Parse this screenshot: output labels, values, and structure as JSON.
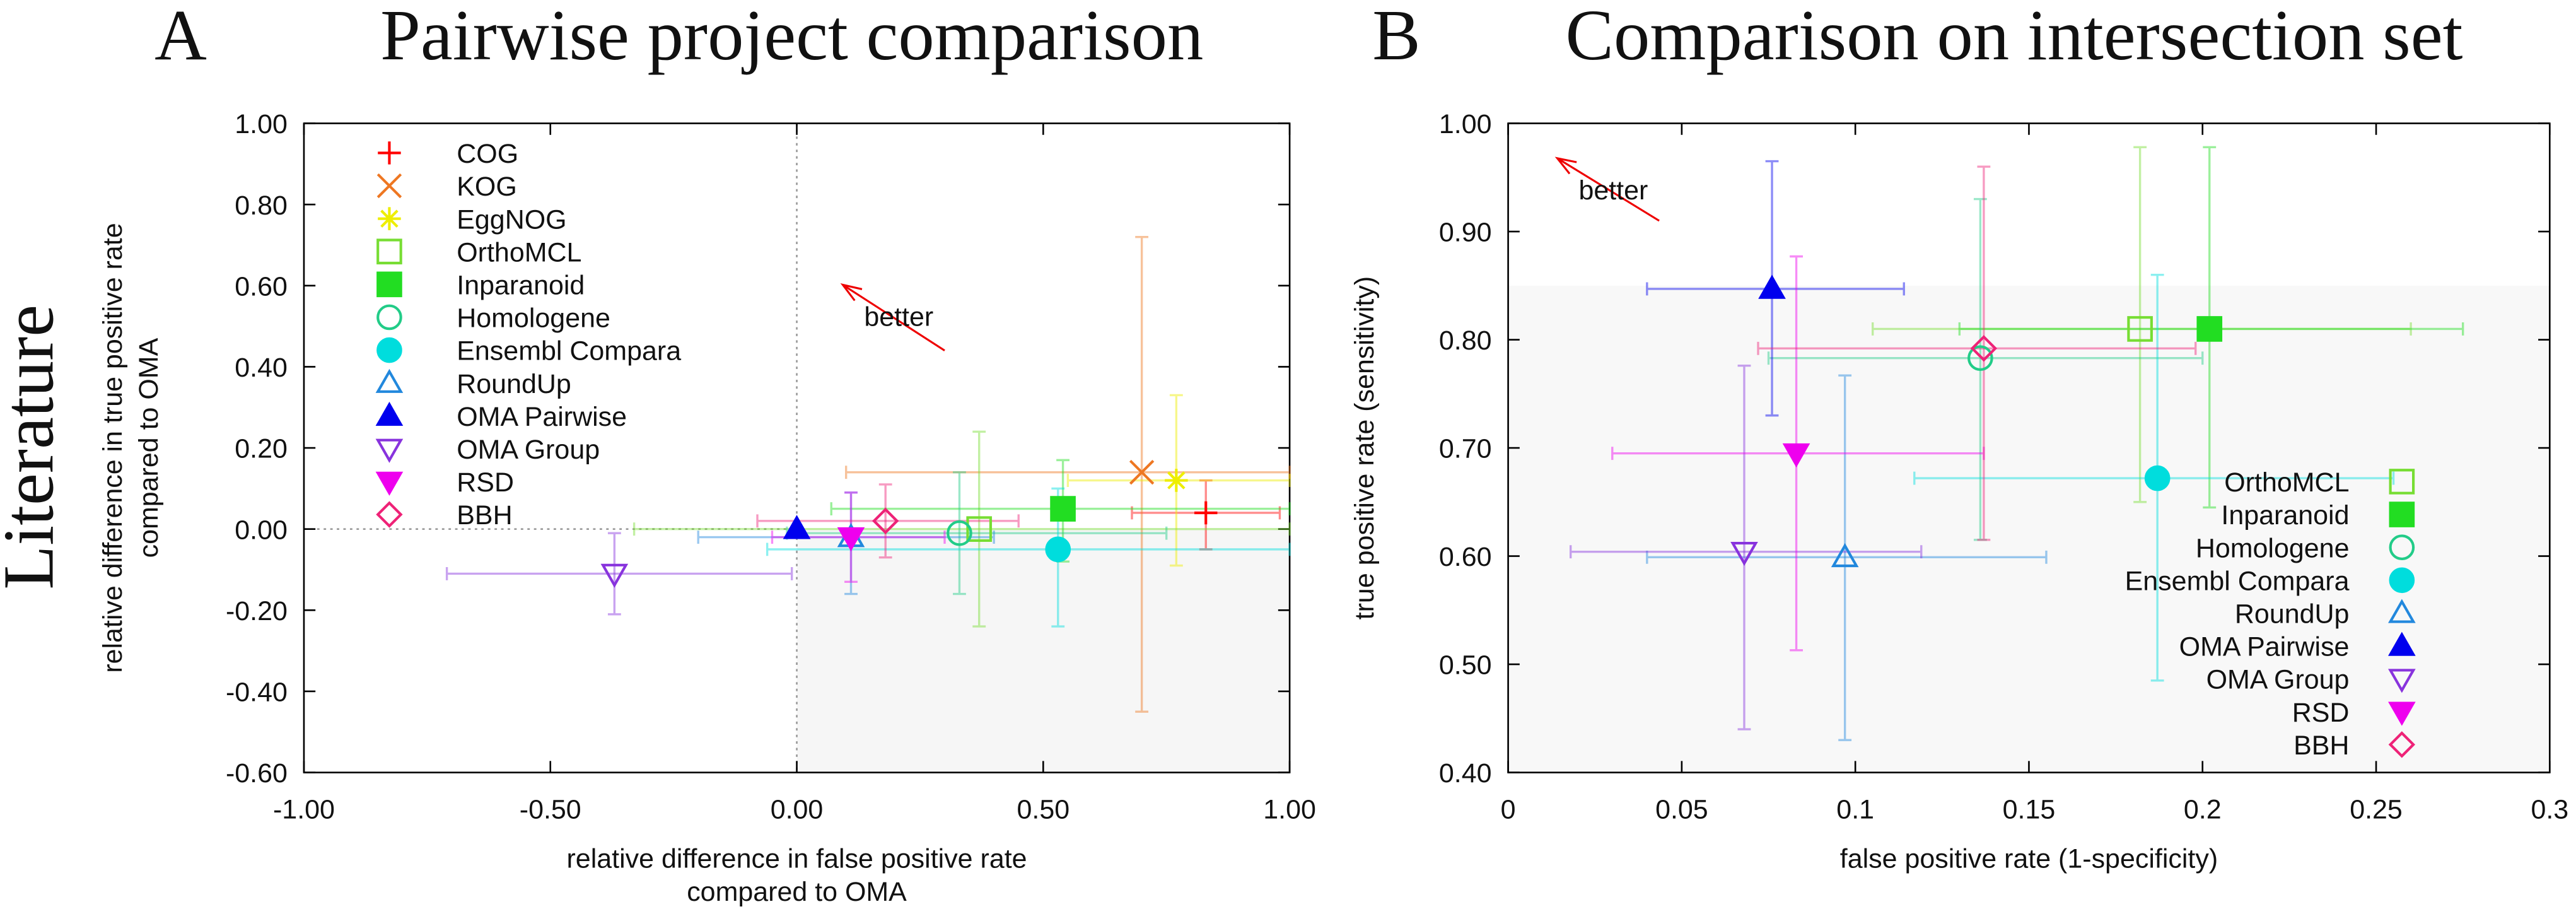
{
  "row_label": "Literature",
  "chart_data": [
    {
      "type": "scatter",
      "panel_label": "A",
      "title": "Pairwise project comparison",
      "xlabel": [
        "relative difference in false positive rate",
        "compared to OMA"
      ],
      "ylabel": [
        "relative difference in true positive rate",
        "compared to OMA"
      ],
      "xlim": [
        -1,
        1
      ],
      "ylim": [
        -0.6,
        1
      ],
      "xticks": [
        {
          "value": -1,
          "label": "-1.00"
        },
        {
          "value": -0.5,
          "label": "-0.50"
        },
        {
          "value": 0,
          "label": "0.00"
        },
        {
          "value": 0.5,
          "label": "0.50"
        },
        {
          "value": 1,
          "label": "1.00"
        }
      ],
      "yticks": [
        {
          "value": -0.6,
          "label": "-0.60"
        },
        {
          "value": -0.4,
          "label": "-0.40"
        },
        {
          "value": -0.2,
          "label": "-0.20"
        },
        {
          "value": 0,
          "label": "0.00"
        },
        {
          "value": 0.2,
          "label": "0.20"
        },
        {
          "value": 0.4,
          "label": "0.40"
        },
        {
          "value": 0.6,
          "label": "0.60"
        },
        {
          "value": 0.8,
          "label": "0.80"
        },
        {
          "value": 1,
          "label": "1.00"
        }
      ],
      "legend": "upper left",
      "annotation": "better",
      "series": [
        {
          "name": "COG",
          "color": "#ff0000",
          "marker": "plus",
          "x": 0.83,
          "y": 0.04,
          "xmin": 0.68,
          "xmax": 0.98,
          "ymin": -0.05,
          "ymax": 0.12
        },
        {
          "name": "KOG",
          "color": "#ee7722",
          "marker": "cross",
          "x": 0.7,
          "y": 0.14,
          "xmin": 0.1,
          "xmax": 1,
          "ymin": -0.45,
          "ymax": 0.72
        },
        {
          "name": "EggNOG",
          "color": "#eeee00",
          "marker": "star",
          "x": 0.77,
          "y": 0.12,
          "xmin": 0.55,
          "xmax": 1,
          "ymin": -0.09,
          "ymax": 0.33
        },
        {
          "name": "OrthoMCL",
          "color": "#77dd33",
          "marker": "square-open",
          "x": 0.37,
          "y": 0,
          "xmin": -0.33,
          "xmax": 1,
          "ymin": -0.24,
          "ymax": 0.24
        },
        {
          "name": "Inparanoid",
          "color": "#22dd22",
          "marker": "square",
          "x": 0.54,
          "y": 0.05,
          "xmin": 0.07,
          "xmax": 1,
          "ymin": -0.08,
          "ymax": 0.17
        },
        {
          "name": "Homologene",
          "color": "#22cc88",
          "marker": "circle-open",
          "x": 0.33,
          "y": -0.01,
          "xmin": -0.02,
          "xmax": 0.75,
          "ymin": -0.16,
          "ymax": 0.14
        },
        {
          "name": "Ensembl Compara",
          "color": "#00dddd",
          "marker": "circle",
          "x": 0.53,
          "y": -0.05,
          "xmin": -0.06,
          "xmax": 1,
          "ymin": -0.24,
          "ymax": 0.1
        },
        {
          "name": "RoundUp",
          "color": "#2288dd",
          "marker": "triangle-open",
          "x": 0.11,
          "y": -0.02,
          "xmin": -0.2,
          "xmax": 0.4,
          "ymin": -0.16,
          "ymax": 0.09
        },
        {
          "name": "OMA Pairwise",
          "color": "#0000ee",
          "marker": "triangle",
          "x": 0,
          "y": 0
        },
        {
          "name": "OMA Group",
          "color": "#8833dd",
          "marker": "tridown-open",
          "x": -0.37,
          "y": -0.11,
          "xmin": -0.71,
          "xmax": -0.01,
          "ymin": -0.21,
          "ymax": -0.01
        },
        {
          "name": "RSD",
          "color": "#ee00ee",
          "marker": "tridown",
          "x": 0.11,
          "y": -0.02,
          "xmin": -0.05,
          "xmax": 0.3,
          "ymin": -0.13,
          "ymax": 0.09
        },
        {
          "name": "BBH",
          "color": "#ee2277",
          "marker": "diamond-open",
          "x": 0.18,
          "y": 0.02,
          "xmin": -0.08,
          "xmax": 0.45,
          "ymin": -0.07,
          "ymax": 0.11
        }
      ]
    },
    {
      "type": "scatter",
      "panel_label": "B",
      "title": "Comparison on intersection set",
      "xlabel": [
        "false positive rate (1-specificity)"
      ],
      "ylabel": [
        "true positive rate (sensitivity)"
      ],
      "xlim": [
        0,
        0.3
      ],
      "ylim": [
        0.4,
        1
      ],
      "xticks": [
        0,
        0.05,
        0.1,
        0.15,
        0.2,
        0.25,
        0.3
      ],
      "yticks": [
        {
          "value": 0.4,
          "label": "0.40"
        },
        {
          "value": 0.5,
          "label": "0.50"
        },
        {
          "value": 0.6,
          "label": "0.60"
        },
        {
          "value": 0.7,
          "label": "0.70"
        },
        {
          "value": 0.8,
          "label": "0.80"
        },
        {
          "value": 0.9,
          "label": "0.90"
        },
        {
          "value": 1,
          "label": "1.00"
        }
      ],
      "legend": "lower right",
      "annotation": "better",
      "series": [
        {
          "name": "OrthoMCL",
          "color": "#77dd33",
          "marker": "square-open",
          "x": 0.182,
          "y": 0.81,
          "xmin": 0.105,
          "xmax": 0.26,
          "ymin": 0.65,
          "ymax": 0.978
        },
        {
          "name": "Inparanoid",
          "color": "#22dd22",
          "marker": "square",
          "x": 0.202,
          "y": 0.81,
          "xmin": 0.13,
          "xmax": 0.275,
          "ymin": 0.645,
          "ymax": 0.978
        },
        {
          "name": "Homologene",
          "color": "#22cc88",
          "marker": "circle-open",
          "x": 0.136,
          "y": 0.783,
          "xmin": 0.075,
          "xmax": 0.2,
          "ymin": 0.615,
          "ymax": 0.93
        },
        {
          "name": "Ensembl Compara",
          "color": "#00dddd",
          "marker": "circle",
          "x": 0.187,
          "y": 0.672,
          "xmin": 0.117,
          "xmax": 0.255,
          "ymin": 0.485,
          "ymax": 0.86
        },
        {
          "name": "RoundUp",
          "color": "#2288dd",
          "marker": "triangle-open",
          "x": 0.097,
          "y": 0.599,
          "xmin": 0.04,
          "xmax": 0.155,
          "ymin": 0.43,
          "ymax": 0.767
        },
        {
          "name": "OMA Pairwise",
          "color": "#0000ee",
          "marker": "triangle",
          "x": 0.076,
          "y": 0.847,
          "xmin": 0.04,
          "xmax": 0.114,
          "ymin": 0.73,
          "ymax": 0.965
        },
        {
          "name": "OMA Group",
          "color": "#8833dd",
          "marker": "tridown-open",
          "x": 0.068,
          "y": 0.604,
          "xmin": 0.018,
          "xmax": 0.119,
          "ymin": 0.44,
          "ymax": 0.776
        },
        {
          "name": "RSD",
          "color": "#ee00ee",
          "marker": "tridown",
          "x": 0.083,
          "y": 0.695,
          "xmin": 0.03,
          "xmax": 0.137,
          "ymin": 0.513,
          "ymax": 0.877
        },
        {
          "name": "BBH",
          "color": "#ee2277",
          "marker": "diamond-open",
          "x": 0.137,
          "y": 0.792,
          "xmin": 0.072,
          "xmax": 0.198,
          "ymin": 0.615,
          "ymax": 0.96
        }
      ]
    }
  ]
}
